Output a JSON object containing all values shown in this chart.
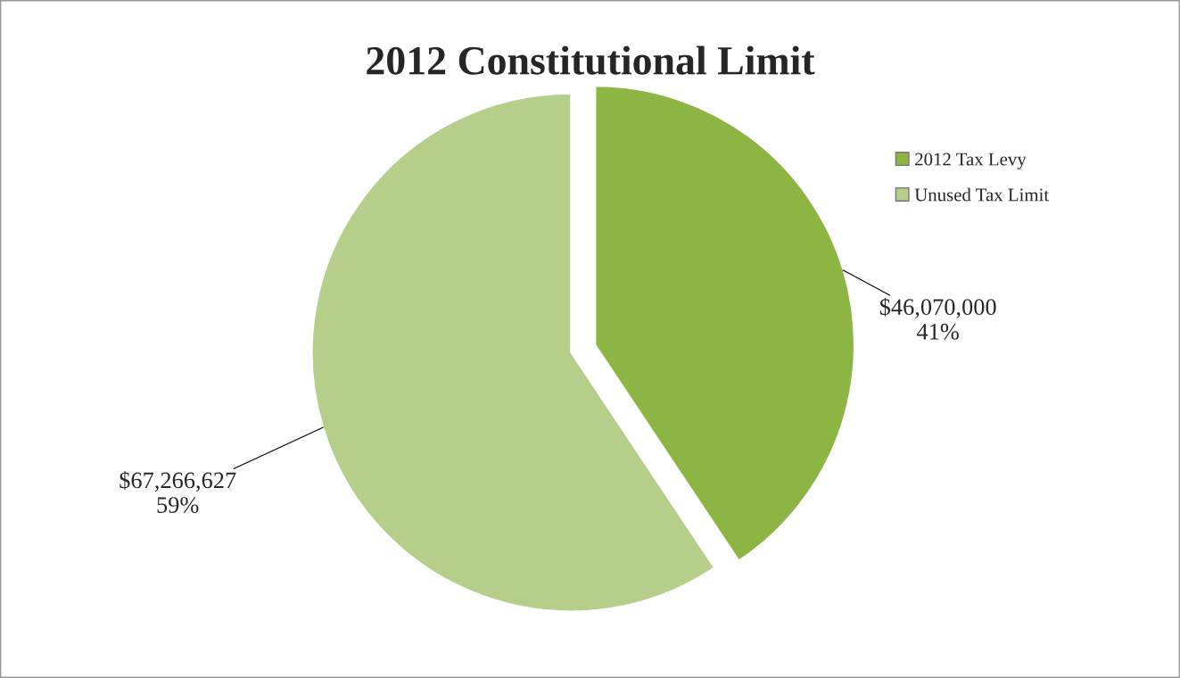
{
  "chart_data": {
    "type": "pie",
    "title": "2012 Constitutional Limit",
    "categories": [
      "2012 Tax Levy",
      "Unused Tax Limit"
    ],
    "values": [
      46070000,
      67266627
    ],
    "colors": [
      "#8db543",
      "#b5cf8a"
    ],
    "value_labels": [
      "$46,070,000\n41%",
      "$67,266,627\n59%"
    ],
    "legend": "right"
  }
}
